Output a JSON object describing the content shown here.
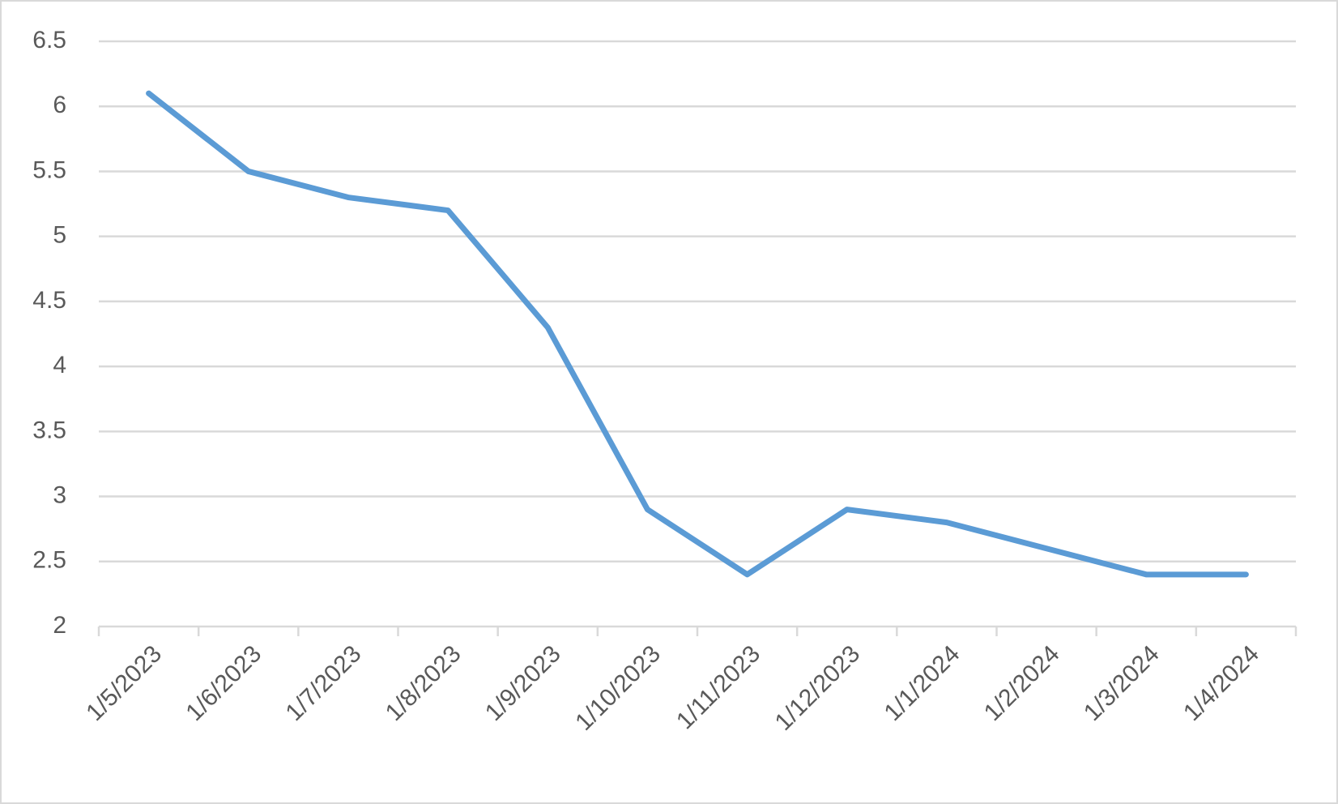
{
  "chart_data": {
    "type": "line",
    "categories": [
      "1/5/2023",
      "1/6/2023",
      "1/7/2023",
      "1/8/2023",
      "1/9/2023",
      "1/10/2023",
      "1/11/2023",
      "1/12/2023",
      "1/1/2024",
      "1/2/2024",
      "1/3/2024",
      "1/4/2024"
    ],
    "values": [
      6.1,
      5.5,
      5.3,
      5.2,
      4.3,
      2.9,
      2.4,
      2.9,
      2.8,
      2.6,
      2.4,
      2.4
    ],
    "color": "#5b9bd5",
    "ylim": [
      2,
      6.5
    ],
    "yticks": [
      2,
      2.5,
      3,
      3.5,
      4,
      4.5,
      5,
      5.5,
      6,
      6.5
    ],
    "grid": true
  }
}
